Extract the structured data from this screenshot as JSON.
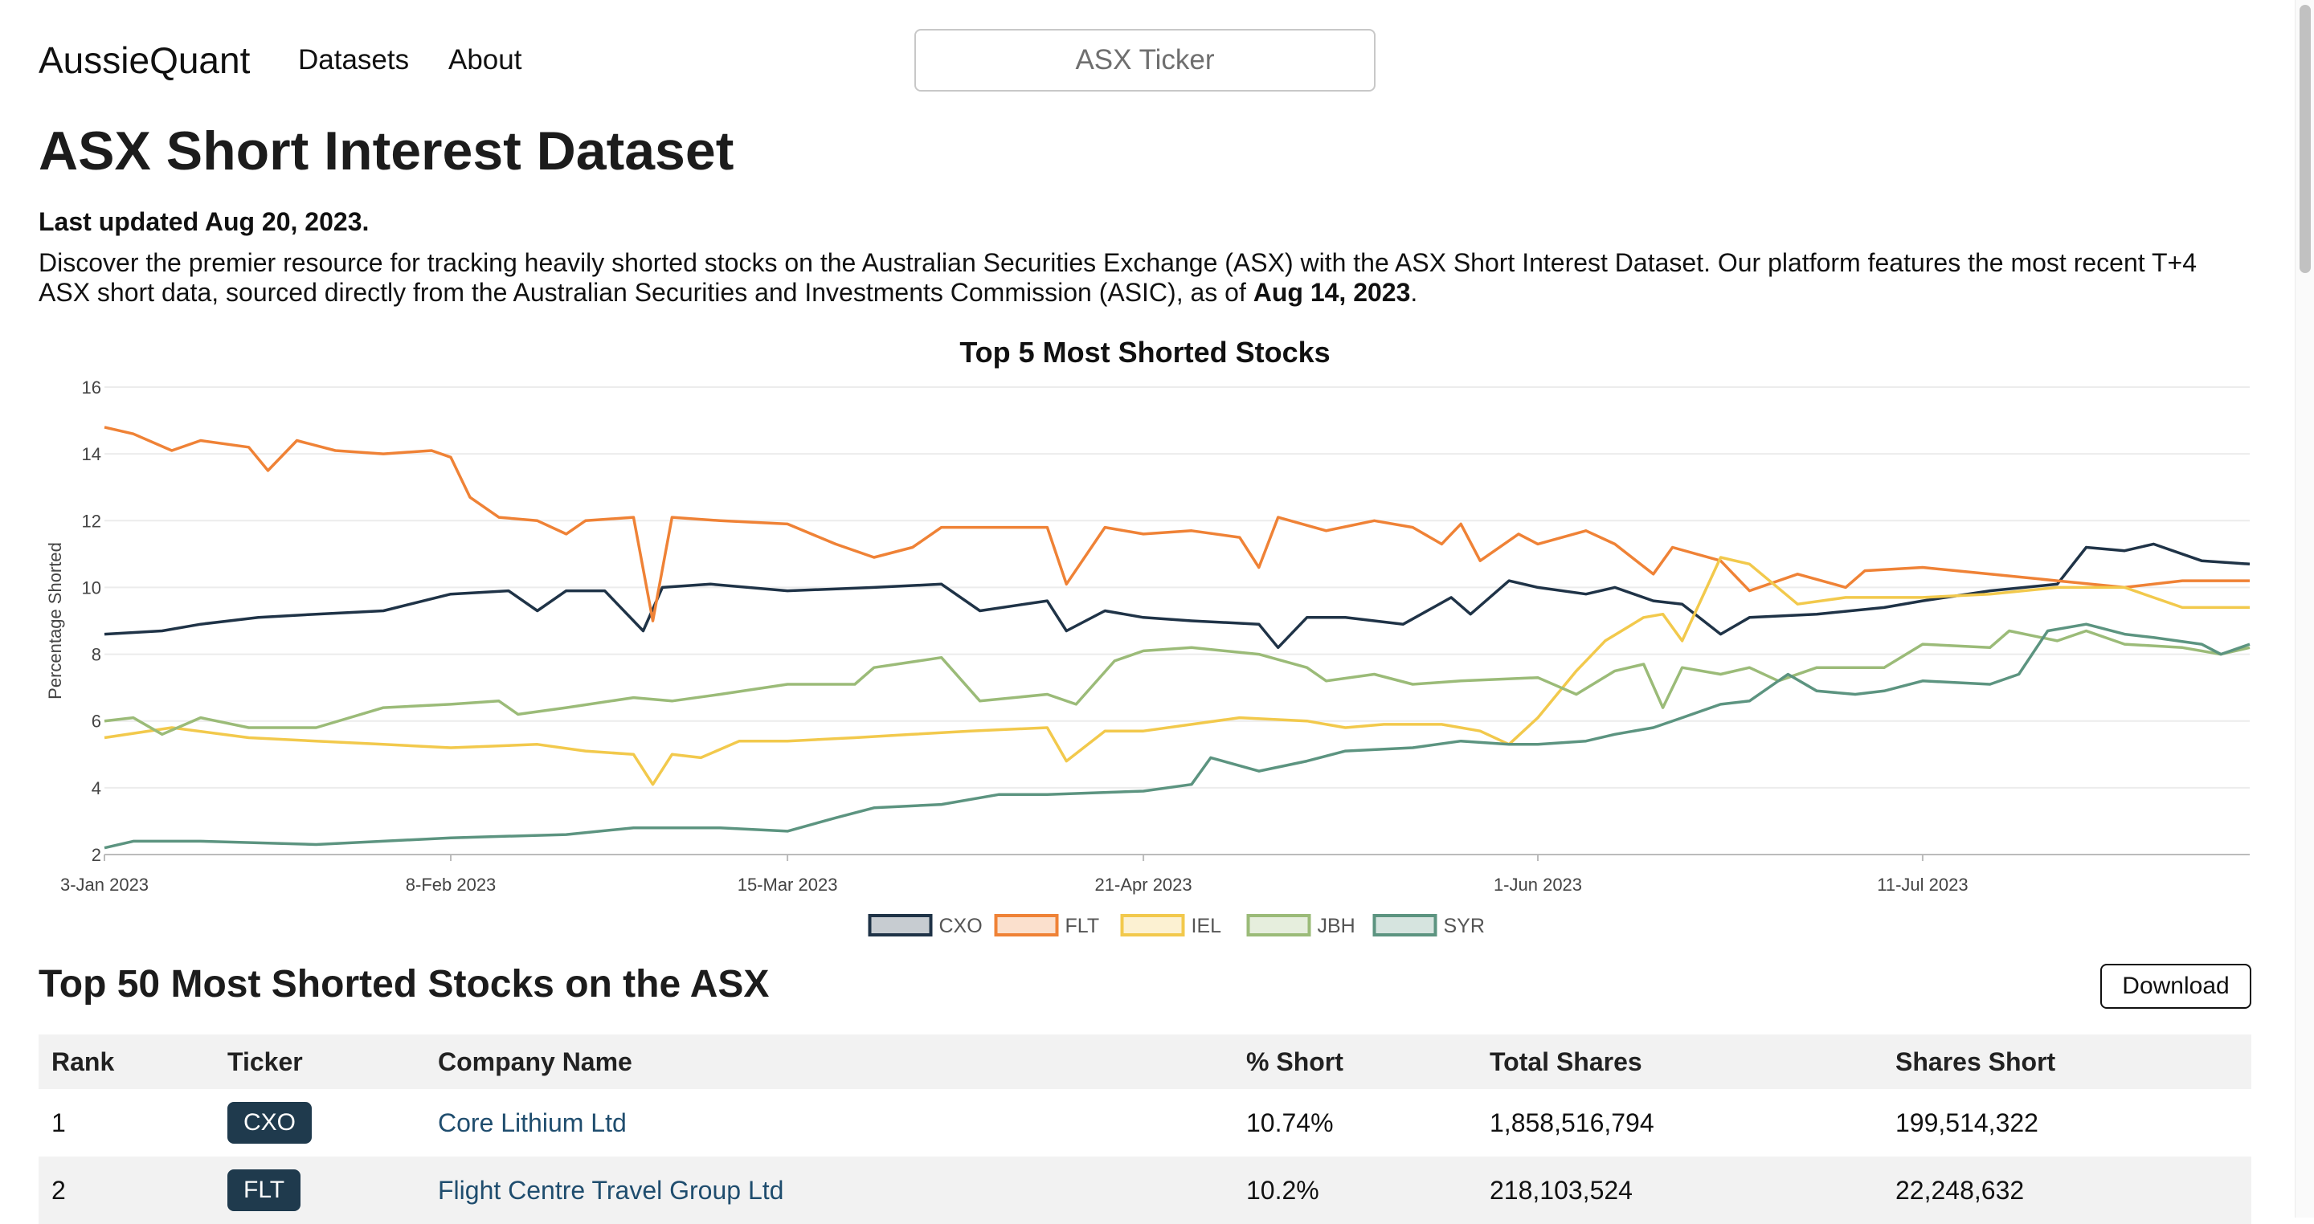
{
  "nav": {
    "brand": "AussieQuant",
    "links": [
      "Datasets",
      "About"
    ],
    "search_placeholder": "ASX Ticker"
  },
  "page": {
    "title": "ASX Short Interest Dataset",
    "updated": "Last updated Aug 20, 2023.",
    "desc_part1": "Discover the premier resource for tracking heavily shorted stocks on the Australian Securities Exchange (ASX) with the ASX Short Interest Dataset. Our platform features the most recent T+4 ASX short data, sourced directly from the Australian Securities and Investments Commission (ASIC), as of ",
    "desc_bold": "Aug 14, 2023",
    "desc_part2": "."
  },
  "chart_data": {
    "type": "line",
    "title": "Top 5 Most Shorted Stocks",
    "ylabel": "Percentage Shorted",
    "xlabel": "",
    "ylim": [
      2,
      16
    ],
    "yticks": [
      2,
      4,
      6,
      8,
      10,
      12,
      14,
      16
    ],
    "x_range": [
      "2023-01-03",
      "2023-08-14"
    ],
    "xticks": [
      {
        "date": "2023-01-03",
        "label": "3-Jan 2023"
      },
      {
        "date": "2023-02-08",
        "label": "8-Feb 2023"
      },
      {
        "date": "2023-03-15",
        "label": "15-Mar 2023"
      },
      {
        "date": "2023-04-21",
        "label": "21-Apr 2023"
      },
      {
        "date": "2023-06-01",
        "label": "1-Jun 2023"
      },
      {
        "date": "2023-07-11",
        "label": "11-Jul 2023"
      }
    ],
    "grid": true,
    "legend_position": "bottom",
    "series": [
      {
        "name": "CXO",
        "color": "#1f3347",
        "points": [
          [
            "2023-01-03",
            8.6
          ],
          [
            "2023-01-09",
            8.7
          ],
          [
            "2023-01-13",
            8.9
          ],
          [
            "2023-01-19",
            9.1
          ],
          [
            "2023-01-25",
            9.2
          ],
          [
            "2023-02-01",
            9.3
          ],
          [
            "2023-02-08",
            9.8
          ],
          [
            "2023-02-14",
            9.9
          ],
          [
            "2023-02-17",
            9.3
          ],
          [
            "2023-02-20",
            9.9
          ],
          [
            "2023-02-24",
            9.9
          ],
          [
            "2023-02-28",
            8.7
          ],
          [
            "2023-03-02",
            10.0
          ],
          [
            "2023-03-07",
            10.1
          ],
          [
            "2023-03-15",
            9.9
          ],
          [
            "2023-03-24",
            10.0
          ],
          [
            "2023-03-31",
            10.1
          ],
          [
            "2023-04-04",
            9.3
          ],
          [
            "2023-04-11",
            9.6
          ],
          [
            "2023-04-13",
            8.7
          ],
          [
            "2023-04-17",
            9.3
          ],
          [
            "2023-04-21",
            9.1
          ],
          [
            "2023-04-26",
            9.0
          ],
          [
            "2023-05-03",
            8.9
          ],
          [
            "2023-05-05",
            8.2
          ],
          [
            "2023-05-08",
            9.1
          ],
          [
            "2023-05-12",
            9.1
          ],
          [
            "2023-05-18",
            8.9
          ],
          [
            "2023-05-23",
            9.7
          ],
          [
            "2023-05-25",
            9.2
          ],
          [
            "2023-05-29",
            10.2
          ],
          [
            "2023-06-01",
            10.0
          ],
          [
            "2023-06-06",
            9.8
          ],
          [
            "2023-06-09",
            10.0
          ],
          [
            "2023-06-13",
            9.6
          ],
          [
            "2023-06-16",
            9.5
          ],
          [
            "2023-06-20",
            8.6
          ],
          [
            "2023-06-23",
            9.1
          ],
          [
            "2023-06-30",
            9.2
          ],
          [
            "2023-07-07",
            9.4
          ],
          [
            "2023-07-11",
            9.6
          ],
          [
            "2023-07-18",
            9.9
          ],
          [
            "2023-07-25",
            10.1
          ],
          [
            "2023-07-28",
            11.2
          ],
          [
            "2023-08-01",
            11.1
          ],
          [
            "2023-08-04",
            11.3
          ],
          [
            "2023-08-09",
            10.8
          ],
          [
            "2023-08-14",
            10.7
          ]
        ]
      },
      {
        "name": "FLT",
        "color": "#ef8236",
        "points": [
          [
            "2023-01-03",
            14.8
          ],
          [
            "2023-01-06",
            14.6
          ],
          [
            "2023-01-10",
            14.1
          ],
          [
            "2023-01-13",
            14.4
          ],
          [
            "2023-01-18",
            14.2
          ],
          [
            "2023-01-20",
            13.5
          ],
          [
            "2023-01-23",
            14.4
          ],
          [
            "2023-01-27",
            14.1
          ],
          [
            "2023-02-01",
            14.0
          ],
          [
            "2023-02-06",
            14.1
          ],
          [
            "2023-02-08",
            13.9
          ],
          [
            "2023-02-10",
            12.7
          ],
          [
            "2023-02-13",
            12.1
          ],
          [
            "2023-02-17",
            12.0
          ],
          [
            "2023-02-20",
            11.6
          ],
          [
            "2023-02-22",
            12.0
          ],
          [
            "2023-02-27",
            12.1
          ],
          [
            "2023-03-01",
            9.0
          ],
          [
            "2023-03-03",
            12.1
          ],
          [
            "2023-03-08",
            12.0
          ],
          [
            "2023-03-15",
            11.9
          ],
          [
            "2023-03-20",
            11.3
          ],
          [
            "2023-03-24",
            10.9
          ],
          [
            "2023-03-28",
            11.2
          ],
          [
            "2023-03-31",
            11.8
          ],
          [
            "2023-04-06",
            11.8
          ],
          [
            "2023-04-11",
            11.8
          ],
          [
            "2023-04-13",
            10.1
          ],
          [
            "2023-04-17",
            11.8
          ],
          [
            "2023-04-21",
            11.6
          ],
          [
            "2023-04-26",
            11.7
          ],
          [
            "2023-05-01",
            11.5
          ],
          [
            "2023-05-03",
            10.6
          ],
          [
            "2023-05-05",
            12.1
          ],
          [
            "2023-05-10",
            11.7
          ],
          [
            "2023-05-15",
            12.0
          ],
          [
            "2023-05-19",
            11.8
          ],
          [
            "2023-05-22",
            11.3
          ],
          [
            "2023-05-24",
            11.9
          ],
          [
            "2023-05-26",
            10.8
          ],
          [
            "2023-05-30",
            11.6
          ],
          [
            "2023-06-01",
            11.3
          ],
          [
            "2023-06-06",
            11.7
          ],
          [
            "2023-06-09",
            11.3
          ],
          [
            "2023-06-13",
            10.4
          ],
          [
            "2023-06-15",
            11.2
          ],
          [
            "2023-06-20",
            10.8
          ],
          [
            "2023-06-23",
            9.9
          ],
          [
            "2023-06-28",
            10.4
          ],
          [
            "2023-07-03",
            10.0
          ],
          [
            "2023-07-05",
            10.5
          ],
          [
            "2023-07-11",
            10.6
          ],
          [
            "2023-07-18",
            10.4
          ],
          [
            "2023-07-25",
            10.2
          ],
          [
            "2023-08-01",
            10.0
          ],
          [
            "2023-08-07",
            10.2
          ],
          [
            "2023-08-14",
            10.2
          ]
        ]
      },
      {
        "name": "IEL",
        "color": "#f2c94c",
        "points": [
          [
            "2023-01-03",
            5.5
          ],
          [
            "2023-01-10",
            5.8
          ],
          [
            "2023-01-18",
            5.5
          ],
          [
            "2023-01-25",
            5.4
          ],
          [
            "2023-02-01",
            5.3
          ],
          [
            "2023-02-08",
            5.2
          ],
          [
            "2023-02-17",
            5.3
          ],
          [
            "2023-02-22",
            5.1
          ],
          [
            "2023-02-27",
            5.0
          ],
          [
            "2023-03-01",
            4.1
          ],
          [
            "2023-03-03",
            5.0
          ],
          [
            "2023-03-06",
            4.9
          ],
          [
            "2023-03-10",
            5.4
          ],
          [
            "2023-03-15",
            5.4
          ],
          [
            "2023-03-22",
            5.5
          ],
          [
            "2023-03-28",
            5.6
          ],
          [
            "2023-04-03",
            5.7
          ],
          [
            "2023-04-11",
            5.8
          ],
          [
            "2023-04-13",
            4.8
          ],
          [
            "2023-04-17",
            5.7
          ],
          [
            "2023-04-21",
            5.7
          ],
          [
            "2023-04-26",
            5.9
          ],
          [
            "2023-05-01",
            6.1
          ],
          [
            "2023-05-08",
            6.0
          ],
          [
            "2023-05-12",
            5.8
          ],
          [
            "2023-05-16",
            5.9
          ],
          [
            "2023-05-22",
            5.9
          ],
          [
            "2023-05-26",
            5.7
          ],
          [
            "2023-05-29",
            5.3
          ],
          [
            "2023-06-01",
            6.1
          ],
          [
            "2023-06-05",
            7.5
          ],
          [
            "2023-06-08",
            8.4
          ],
          [
            "2023-06-12",
            9.1
          ],
          [
            "2023-06-14",
            9.2
          ],
          [
            "2023-06-16",
            8.4
          ],
          [
            "2023-06-20",
            10.9
          ],
          [
            "2023-06-23",
            10.7
          ],
          [
            "2023-06-28",
            9.5
          ],
          [
            "2023-07-03",
            9.7
          ],
          [
            "2023-07-11",
            9.7
          ],
          [
            "2023-07-18",
            9.8
          ],
          [
            "2023-07-25",
            10.0
          ],
          [
            "2023-08-01",
            10.0
          ],
          [
            "2023-08-07",
            9.4
          ],
          [
            "2023-08-14",
            9.4
          ]
        ]
      },
      {
        "name": "JBH",
        "color": "#9bbb78",
        "points": [
          [
            "2023-01-03",
            6.0
          ],
          [
            "2023-01-06",
            6.1
          ],
          [
            "2023-01-09",
            5.6
          ],
          [
            "2023-01-13",
            6.1
          ],
          [
            "2023-01-18",
            5.8
          ],
          [
            "2023-01-25",
            5.8
          ],
          [
            "2023-02-01",
            6.4
          ],
          [
            "2023-02-08",
            6.5
          ],
          [
            "2023-02-13",
            6.6
          ],
          [
            "2023-02-15",
            6.2
          ],
          [
            "2023-02-20",
            6.4
          ],
          [
            "2023-02-27",
            6.7
          ],
          [
            "2023-03-03",
            6.6
          ],
          [
            "2023-03-08",
            6.8
          ],
          [
            "2023-03-15",
            7.1
          ],
          [
            "2023-03-22",
            7.1
          ],
          [
            "2023-03-24",
            7.6
          ],
          [
            "2023-03-31",
            7.9
          ],
          [
            "2023-04-04",
            6.6
          ],
          [
            "2023-04-11",
            6.8
          ],
          [
            "2023-04-14",
            6.5
          ],
          [
            "2023-04-18",
            7.8
          ],
          [
            "2023-04-21",
            8.1
          ],
          [
            "2023-04-26",
            8.2
          ],
          [
            "2023-05-03",
            8.0
          ],
          [
            "2023-05-08",
            7.6
          ],
          [
            "2023-05-10",
            7.2
          ],
          [
            "2023-05-15",
            7.4
          ],
          [
            "2023-05-19",
            7.1
          ],
          [
            "2023-05-24",
            7.2
          ],
          [
            "2023-06-01",
            7.3
          ],
          [
            "2023-06-05",
            6.8
          ],
          [
            "2023-06-09",
            7.5
          ],
          [
            "2023-06-12",
            7.7
          ],
          [
            "2023-06-14",
            6.4
          ],
          [
            "2023-06-16",
            7.6
          ],
          [
            "2023-06-20",
            7.4
          ],
          [
            "2023-06-23",
            7.6
          ],
          [
            "2023-06-26",
            7.2
          ],
          [
            "2023-06-30",
            7.6
          ],
          [
            "2023-07-07",
            7.6
          ],
          [
            "2023-07-11",
            8.3
          ],
          [
            "2023-07-18",
            8.2
          ],
          [
            "2023-07-20",
            8.7
          ],
          [
            "2023-07-25",
            8.4
          ],
          [
            "2023-07-28",
            8.7
          ],
          [
            "2023-08-01",
            8.3
          ],
          [
            "2023-08-07",
            8.2
          ],
          [
            "2023-08-11",
            8.0
          ],
          [
            "2023-08-14",
            8.2
          ]
        ]
      },
      {
        "name": "SYR",
        "color": "#5c9480",
        "points": [
          [
            "2023-01-03",
            2.2
          ],
          [
            "2023-01-06",
            2.4
          ],
          [
            "2023-01-13",
            2.4
          ],
          [
            "2023-01-25",
            2.3
          ],
          [
            "2023-02-08",
            2.5
          ],
          [
            "2023-02-20",
            2.6
          ],
          [
            "2023-02-27",
            2.8
          ],
          [
            "2023-03-08",
            2.8
          ],
          [
            "2023-03-15",
            2.7
          ],
          [
            "2023-03-20",
            3.1
          ],
          [
            "2023-03-24",
            3.4
          ],
          [
            "2023-03-31",
            3.5
          ],
          [
            "2023-04-06",
            3.8
          ],
          [
            "2023-04-11",
            3.8
          ],
          [
            "2023-04-21",
            3.9
          ],
          [
            "2023-04-26",
            4.1
          ],
          [
            "2023-04-28",
            4.9
          ],
          [
            "2023-05-03",
            4.5
          ],
          [
            "2023-05-08",
            4.8
          ],
          [
            "2023-05-12",
            5.1
          ],
          [
            "2023-05-19",
            5.2
          ],
          [
            "2023-05-24",
            5.4
          ],
          [
            "2023-05-29",
            5.3
          ],
          [
            "2023-06-01",
            5.3
          ],
          [
            "2023-06-06",
            5.4
          ],
          [
            "2023-06-09",
            5.6
          ],
          [
            "2023-06-13",
            5.8
          ],
          [
            "2023-06-16",
            6.1
          ],
          [
            "2023-06-20",
            6.5
          ],
          [
            "2023-06-23",
            6.6
          ],
          [
            "2023-06-27",
            7.4
          ],
          [
            "2023-06-30",
            6.9
          ],
          [
            "2023-07-04",
            6.8
          ],
          [
            "2023-07-07",
            6.9
          ],
          [
            "2023-07-11",
            7.2
          ],
          [
            "2023-07-18",
            7.1
          ],
          [
            "2023-07-21",
            7.4
          ],
          [
            "2023-07-24",
            8.7
          ],
          [
            "2023-07-28",
            8.9
          ],
          [
            "2023-08-01",
            8.6
          ],
          [
            "2023-08-04",
            8.5
          ],
          [
            "2023-08-09",
            8.3
          ],
          [
            "2023-08-11",
            8.0
          ],
          [
            "2023-08-14",
            8.3
          ]
        ]
      }
    ]
  },
  "table": {
    "section_title": "Top 50 Most Shorted Stocks on the ASX",
    "download_label": "Download",
    "headers": [
      "Rank",
      "Ticker",
      "Company Name",
      "% Short",
      "Total Shares",
      "Shares Short"
    ],
    "rows": [
      {
        "rank": "1",
        "ticker": "CXO",
        "company": "Core Lithium Ltd",
        "pct": "10.74%",
        "total": "1,858,516,794",
        "short": "199,514,322"
      },
      {
        "rank": "2",
        "ticker": "FLT",
        "company": "Flight Centre Travel Group Ltd",
        "pct": "10.2%",
        "total": "218,103,524",
        "short": "22,248,632"
      }
    ]
  }
}
